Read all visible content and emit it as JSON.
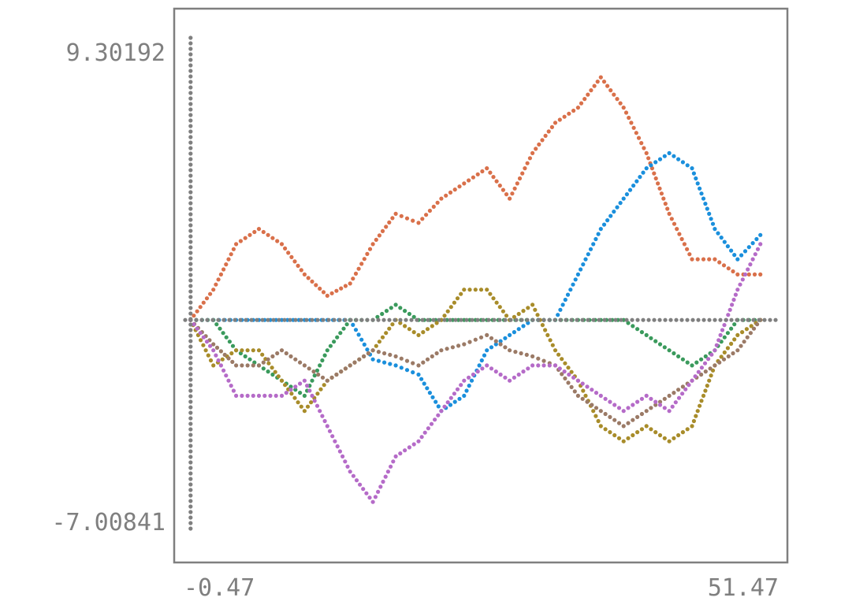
{
  "chart_data": {
    "type": "scatter",
    "title": "",
    "xlabel": "",
    "ylabel": "",
    "grid": false,
    "legend": "none",
    "xlim": [
      -0.47,
      51.47
    ],
    "ylim": [
      -7.00841,
      9.30192
    ],
    "x_tick_labels": [
      "-0.47",
      "51.47"
    ],
    "y_tick_labels": [
      "9.30192",
      "-7.00841"
    ],
    "axis_color": "#7f7f7f",
    "series": [
      {
        "color": "#d9704a",
        "x": [
          0,
          2,
          4,
          6,
          8,
          10,
          12,
          14,
          16,
          18,
          20,
          22,
          24,
          26,
          28,
          30,
          32,
          34,
          36,
          38,
          40,
          42,
          44,
          46,
          48,
          50
        ],
        "y": [
          0,
          1,
          2.5,
          3,
          2.5,
          1.5,
          0.8,
          1.2,
          2.5,
          3.5,
          3.2,
          4,
          4.5,
          5,
          4,
          5.5,
          6.5,
          7,
          8,
          7,
          5.5,
          3.5,
          2,
          2,
          1.5,
          1.5
        ]
      },
      {
        "color": "#1a8fdc",
        "x": [
          0,
          2,
          4,
          6,
          8,
          10,
          12,
          14,
          16,
          18,
          20,
          22,
          24,
          26,
          28,
          30,
          32,
          34,
          36,
          38,
          40,
          42,
          44,
          46,
          48,
          50
        ],
        "y": [
          0,
          0,
          0,
          0,
          0,
          0,
          0,
          0,
          -1.3,
          -1.5,
          -1.8,
          -3,
          -2.5,
          -1,
          -0.5,
          0,
          0,
          1.5,
          3,
          4,
          5,
          5.5,
          5,
          3,
          2,
          2.8
        ]
      },
      {
        "color": "#3a9a5c",
        "x": [
          0,
          2,
          4,
          6,
          8,
          10,
          12,
          14,
          16,
          18,
          20,
          22,
          24,
          26,
          28,
          30,
          32,
          34,
          36,
          38,
          40,
          42,
          44,
          46,
          48,
          50
        ],
        "y": [
          0,
          0,
          -1,
          -1.5,
          -2,
          -2.5,
          -1,
          0,
          0,
          0.5,
          0,
          0,
          0,
          0,
          0,
          0,
          0,
          0,
          0,
          0,
          -0.5,
          -1,
          -1.5,
          -1,
          0,
          0
        ]
      },
      {
        "color": "#a88c2a",
        "x": [
          0,
          2,
          4,
          6,
          8,
          10,
          12,
          14,
          16,
          18,
          20,
          22,
          24,
          26,
          28,
          30,
          32,
          34,
          36,
          38,
          40,
          42,
          44,
          46,
          48,
          50
        ],
        "y": [
          0,
          -1.5,
          -1,
          -1,
          -2,
          -3,
          -2,
          -1.5,
          -1,
          0,
          -0.5,
          0,
          1,
          1,
          0,
          0.5,
          -1,
          -2,
          -3.5,
          -4,
          -3.5,
          -4,
          -3.5,
          -1.5,
          -0.5,
          0
        ]
      },
      {
        "color": "#9b7a66",
        "x": [
          0,
          2,
          4,
          6,
          8,
          10,
          12,
          14,
          16,
          18,
          20,
          22,
          24,
          26,
          28,
          30,
          32,
          34,
          36,
          38,
          40,
          42,
          44,
          46,
          48,
          50
        ],
        "y": [
          0,
          -0.8,
          -1.5,
          -1.5,
          -1,
          -1.5,
          -2,
          -1.5,
          -1,
          -1.2,
          -1.5,
          -1,
          -0.8,
          -0.5,
          -1,
          -1.2,
          -1.5,
          -2.5,
          -3,
          -3.5,
          -3,
          -2.5,
          -2,
          -1.5,
          -1,
          0
        ]
      },
      {
        "color": "#b56bc8",
        "x": [
          0,
          2,
          4,
          6,
          8,
          10,
          12,
          14,
          16,
          18,
          20,
          22,
          24,
          26,
          28,
          30,
          32,
          34,
          36,
          38,
          40,
          42,
          44,
          46,
          48,
          50
        ],
        "y": [
          0,
          -1,
          -2.5,
          -2.5,
          -2.5,
          -2,
          -3.5,
          -5,
          -6,
          -4.5,
          -4,
          -3,
          -2,
          -1.5,
          -2,
          -1.5,
          -1.5,
          -2,
          -2.5,
          -3,
          -2.5,
          -3,
          -2,
          -1,
          1,
          2.5
        ]
      },
      {
        "color": "#7f7f7f",
        "kind": "axes"
      }
    ]
  }
}
